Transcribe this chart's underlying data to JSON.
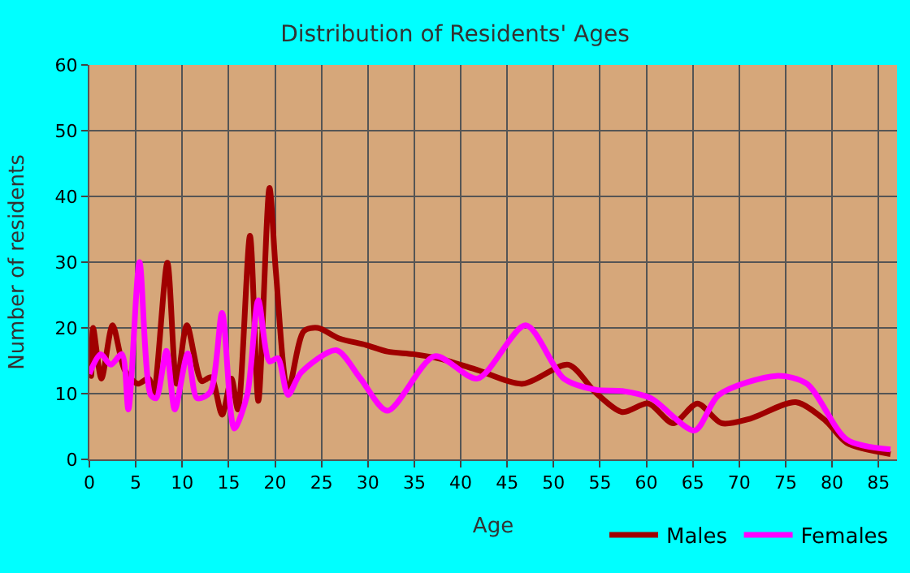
{
  "chart_data": {
    "type": "line",
    "title": "Distribution of Residents' Ages",
    "xlabel": "Age",
    "ylabel": "Number of residents",
    "xlim": [
      0,
      87
    ],
    "xticks": [
      0,
      5,
      10,
      15,
      20,
      25,
      30,
      35,
      40,
      45,
      50,
      55,
      60,
      65,
      70,
      75,
      80,
      85
    ],
    "ylim": [
      0,
      60
    ],
    "yticks": [
      0,
      10,
      20,
      30,
      40,
      50,
      60
    ],
    "grid": true,
    "legend": "bottom right",
    "marker": "none",
    "line_style": "solid",
    "series": [
      {
        "name": "Males",
        "color": "#a00000",
        "x": [
          0,
          0.2,
          0.4,
          1.3,
          2.5,
          3.8,
          5.2,
          6.4,
          6.9,
          8.4,
          9.4,
          10.5,
          12.1,
          13.1,
          14.3,
          15.3,
          16,
          17.3,
          18.2,
          19.4,
          20.1,
          21.4,
          23.1,
          24.6,
          26.9,
          29.8,
          32.1,
          34.9,
          37.8,
          41.8,
          46.7,
          51.6,
          54.5,
          57.4,
          60.2,
          62.9,
          65.5,
          68.1,
          71.2,
          76.1,
          79.3,
          81.6,
          86.3
        ],
        "values": [
          16.5,
          12.7,
          20,
          12.3,
          20.4,
          13.6,
          11.5,
          12.3,
          9.6,
          29.9,
          11.5,
          20.4,
          11.9,
          12.5,
          6.8,
          12.3,
          7.6,
          34,
          8.9,
          41.3,
          28.4,
          10.4,
          19.5,
          20,
          18.4,
          17.4,
          16.4,
          16,
          15.3,
          13.6,
          11.5,
          14.4,
          10.2,
          7.2,
          8.5,
          5.5,
          8.5,
          5.5,
          6.2,
          8.7,
          5.9,
          2.5,
          0.8
        ]
      },
      {
        "name": "Females",
        "color": "#ff00ff",
        "x": [
          0,
          1.2,
          2.3,
          3.5,
          4.2,
          5.4,
          6.6,
          7.2,
          8.3,
          9.2,
          10.6,
          11.6,
          13,
          14.3,
          15.6,
          17,
          18.2,
          19.4,
          20.3,
          21.4,
          22.8,
          26.6,
          29.2,
          32.1,
          37.2,
          41.8,
          47,
          51.1,
          54.5,
          57.4,
          60.5,
          65.2,
          67.8,
          74,
          77.3,
          81.6,
          86.3
        ],
        "values": [
          13,
          16,
          14.4,
          16,
          7.6,
          30,
          9.8,
          9.3,
          16.5,
          7.6,
          16.1,
          9.3,
          10.2,
          22.3,
          4.7,
          9.8,
          24.2,
          14.9,
          15.4,
          9.8,
          13.2,
          16.6,
          12.3,
          7.4,
          15.7,
          12.3,
          20.4,
          12.3,
          10.6,
          10.4,
          9.3,
          4.4,
          9.8,
          12.7,
          11.5,
          3,
          1.5
        ]
      }
    ]
  }
}
